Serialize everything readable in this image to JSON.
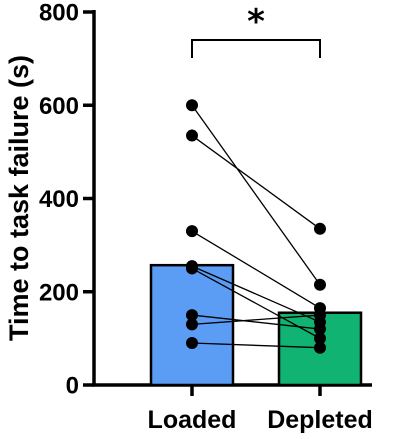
{
  "chart_data": {
    "type": "bar",
    "ylabel": "Time to task failure (s)",
    "ylim": [
      0,
      800
    ],
    "yticks": [
      0,
      200,
      400,
      600,
      800
    ],
    "categories": [
      "Loaded",
      "Depleted"
    ],
    "values": [
      257,
      155
    ],
    "colors": [
      "#5B9CF5",
      "#10B372"
    ],
    "paired_points": [
      [
        600,
        215
      ],
      [
        535,
        335
      ],
      [
        330,
        165
      ],
      [
        255,
        135
      ],
      [
        250,
        100
      ],
      [
        150,
        120
      ],
      [
        130,
        150
      ],
      [
        90,
        80
      ]
    ],
    "significance": {
      "between": [
        "Loaded",
        "Depleted"
      ],
      "label": "*"
    }
  }
}
